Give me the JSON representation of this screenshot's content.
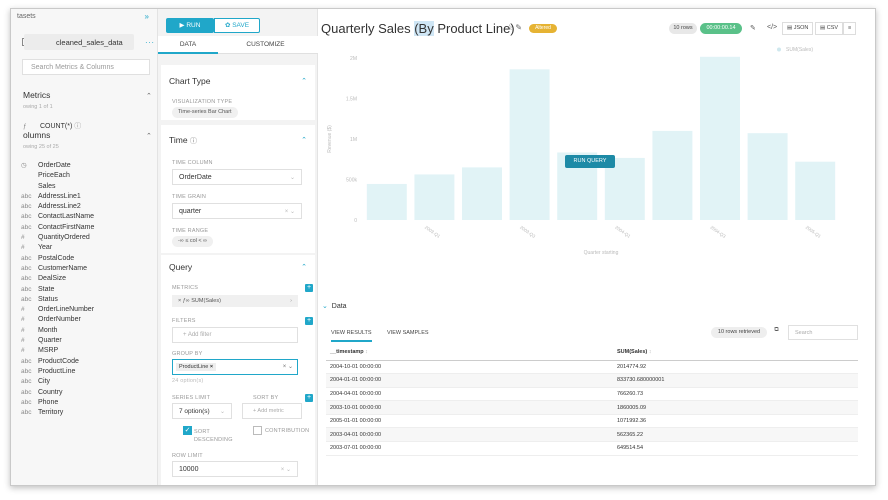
{
  "datasource": {
    "header": "tasets",
    "name": "cleaned_sales_data",
    "search_placeholder": "Search Metrics & Columns",
    "metrics_title": "Metrics",
    "metrics_sub": "owing 1 of 1",
    "metric_item": "COUNT(*)",
    "columns_title": "olumns",
    "columns_sub": "owing 25 of 25",
    "columns": [
      {
        "type": "◷",
        "name": "OrderDate"
      },
      {
        "type": "",
        "name": "PriceEach"
      },
      {
        "type": "",
        "name": "Sales"
      },
      {
        "type": "abc",
        "name": "AddressLine1"
      },
      {
        "type": "abc",
        "name": "AddressLine2"
      },
      {
        "type": "abc",
        "name": "ContactLastName"
      },
      {
        "type": "abc",
        "name": "ContactFirstName"
      },
      {
        "type": "#",
        "name": "QuantityOrdered"
      },
      {
        "type": "#",
        "name": "Year"
      },
      {
        "type": "abc",
        "name": "PostalCode"
      },
      {
        "type": "abc",
        "name": "CustomerName"
      },
      {
        "type": "abc",
        "name": "DealSize"
      },
      {
        "type": "abc",
        "name": "State"
      },
      {
        "type": "abc",
        "name": "Status"
      },
      {
        "type": "#",
        "name": "OrderLineNumber"
      },
      {
        "type": "#",
        "name": "OrderNumber"
      },
      {
        "type": "#",
        "name": "Month"
      },
      {
        "type": "#",
        "name": "Quarter"
      },
      {
        "type": "#",
        "name": "MSRP"
      },
      {
        "type": "abc",
        "name": "ProductCode"
      },
      {
        "type": "abc",
        "name": "ProductLine"
      },
      {
        "type": "abc",
        "name": "City"
      },
      {
        "type": "abc",
        "name": "Country"
      },
      {
        "type": "abc",
        "name": "Phone"
      },
      {
        "type": "abc",
        "name": "Territory"
      }
    ]
  },
  "controls": {
    "run": "RUN",
    "save": "SAVE",
    "tab_data": "DATA",
    "tab_customize": "CUSTOMIZE",
    "chart_type_title": "Chart Type",
    "viz_type_label": "VISUALIZATION TYPE",
    "viz_type_value": "Time-series Bar Chart",
    "time_title": "Time",
    "time_column_label": "TIME COLUMN",
    "time_column_value": "OrderDate",
    "time_grain_label": "TIME GRAIN",
    "time_grain_value": "quarter",
    "time_range_label": "TIME RANGE",
    "time_range_value": "-∞ ≤ col < ∞",
    "query_title": "Query",
    "metrics_label": "METRICS",
    "metrics_value": "SUM(Sales)",
    "filters_label": "FILTERS",
    "filters_placeholder": "+ Add filter",
    "group_by_label": "GROUP BY",
    "group_by_value": "ProductLine",
    "group_by_options": "24 option(s)",
    "series_limit_label": "SERIES LIMIT",
    "series_limit_value": "7 option(s)",
    "sort_by_label": "SORT BY",
    "sort_by_placeholder": "+ Add metric",
    "sort_desc_label": "SORT DESCENDING",
    "contribution_label": "CONTRIBUTION",
    "row_limit_label": "ROW LIMIT",
    "row_limit_value": "10000"
  },
  "main": {
    "title_pre": "Quarterly Sales ",
    "title_hl": "(By",
    "title_post": " Product Line)",
    "altered": "Altered",
    "rows_badge": "10 rows",
    "time_badge": "00:00:00.14",
    "json_btn": "JSON",
    "csv_btn": "CSV",
    "run_query": "RUN QUERY",
    "data_section": "Data",
    "view_results": "VIEW RESULTS",
    "view_samples": "VIEW SAMPLES",
    "rows_retrieved": "10 rows retrieved",
    "search_placeholder": "Search",
    "col_timestamp": "__timestamp",
    "col_sales": "SUM(Sales)",
    "rows": [
      {
        "ts": "2004-10-01 00:00:00",
        "sales": "2014774.92"
      },
      {
        "ts": "2004-01-01 00:00:00",
        "sales": "833730.680000001"
      },
      {
        "ts": "2004-04-01 00:00:00",
        "sales": "766260.73"
      },
      {
        "ts": "2003-10-01 00:00:00",
        "sales": "1860005.09"
      },
      {
        "ts": "2005-01-01 00:00:00",
        "sales": "1071992.36"
      },
      {
        "ts": "2003-04-01 00:00:00",
        "sales": "562365.22"
      },
      {
        "ts": "2003-07-01 00:00:00",
        "sales": "649514.54"
      }
    ]
  },
  "chart_data": {
    "type": "bar",
    "legend": "SUM(Sales)",
    "ylabel": "Revenue ($)",
    "xlabel": "Quarter starting",
    "ylim": [
      0,
      2000000
    ],
    "yticks": [
      "0",
      "500k",
      "1M",
      "1.5M",
      "2M"
    ],
    "x_tick_labels": [
      "2003-Q1",
      "2003-Q3",
      "2004-Q1",
      "2004-Q3",
      "2005-Q1"
    ],
    "values": [
      445000,
      562365.22,
      649514.54,
      1860005.09,
      833730.68,
      766260.73,
      1100000,
      2014774.92,
      1071992.36,
      720000
    ],
    "bar_color": "#e1f3f6"
  },
  "colors": {
    "accent": "#20a7c9",
    "success": "#5ac189",
    "altered": "#e6b333"
  }
}
